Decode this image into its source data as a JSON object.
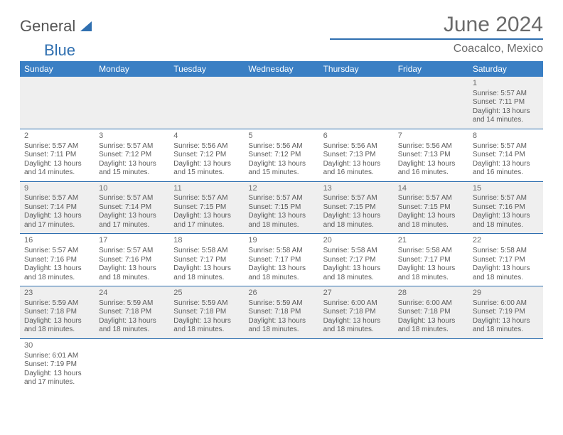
{
  "logo": {
    "word1": "General",
    "word2": "Blue",
    "mark_color": "#2f6fb0"
  },
  "header": {
    "title": "June 2024",
    "subtitle": "Coacalco, Mexico"
  },
  "colors": {
    "header_bg": "#3a7fc4",
    "header_fg": "#ffffff",
    "rule": "#2f6fb0",
    "shaded_row": "#efefef",
    "text": "#5a5a5a",
    "title_text": "#6a6a6a"
  },
  "fonts": {
    "body_pt": 10,
    "daynum_pt": 11,
    "header_pt": 12,
    "title_pt": 30,
    "subtitle_pt": 16
  },
  "day_labels": [
    "Sunday",
    "Monday",
    "Tuesday",
    "Wednesday",
    "Thursday",
    "Friday",
    "Saturday"
  ],
  "weeks": [
    {
      "shaded": true,
      "cells": [
        {
          "blank": true
        },
        {
          "blank": true
        },
        {
          "blank": true
        },
        {
          "blank": true
        },
        {
          "blank": true
        },
        {
          "blank": true
        },
        {
          "n": "1",
          "sr": "5:57 AM",
          "ss": "7:11 PM",
          "dl": "13 hours and 14 minutes."
        }
      ]
    },
    {
      "shaded": false,
      "cells": [
        {
          "n": "2",
          "sr": "5:57 AM",
          "ss": "7:11 PM",
          "dl": "13 hours and 14 minutes."
        },
        {
          "n": "3",
          "sr": "5:57 AM",
          "ss": "7:12 PM",
          "dl": "13 hours and 15 minutes."
        },
        {
          "n": "4",
          "sr": "5:56 AM",
          "ss": "7:12 PM",
          "dl": "13 hours and 15 minutes."
        },
        {
          "n": "5",
          "sr": "5:56 AM",
          "ss": "7:12 PM",
          "dl": "13 hours and 15 minutes."
        },
        {
          "n": "6",
          "sr": "5:56 AM",
          "ss": "7:13 PM",
          "dl": "13 hours and 16 minutes."
        },
        {
          "n": "7",
          "sr": "5:56 AM",
          "ss": "7:13 PM",
          "dl": "13 hours and 16 minutes."
        },
        {
          "n": "8",
          "sr": "5:57 AM",
          "ss": "7:14 PM",
          "dl": "13 hours and 16 minutes."
        }
      ]
    },
    {
      "shaded": true,
      "cells": [
        {
          "n": "9",
          "sr": "5:57 AM",
          "ss": "7:14 PM",
          "dl": "13 hours and 17 minutes."
        },
        {
          "n": "10",
          "sr": "5:57 AM",
          "ss": "7:14 PM",
          "dl": "13 hours and 17 minutes."
        },
        {
          "n": "11",
          "sr": "5:57 AM",
          "ss": "7:15 PM",
          "dl": "13 hours and 17 minutes."
        },
        {
          "n": "12",
          "sr": "5:57 AM",
          "ss": "7:15 PM",
          "dl": "13 hours and 18 minutes."
        },
        {
          "n": "13",
          "sr": "5:57 AM",
          "ss": "7:15 PM",
          "dl": "13 hours and 18 minutes."
        },
        {
          "n": "14",
          "sr": "5:57 AM",
          "ss": "7:15 PM",
          "dl": "13 hours and 18 minutes."
        },
        {
          "n": "15",
          "sr": "5:57 AM",
          "ss": "7:16 PM",
          "dl": "13 hours and 18 minutes."
        }
      ]
    },
    {
      "shaded": false,
      "cells": [
        {
          "n": "16",
          "sr": "5:57 AM",
          "ss": "7:16 PM",
          "dl": "13 hours and 18 minutes."
        },
        {
          "n": "17",
          "sr": "5:57 AM",
          "ss": "7:16 PM",
          "dl": "13 hours and 18 minutes."
        },
        {
          "n": "18",
          "sr": "5:58 AM",
          "ss": "7:17 PM",
          "dl": "13 hours and 18 minutes."
        },
        {
          "n": "19",
          "sr": "5:58 AM",
          "ss": "7:17 PM",
          "dl": "13 hours and 18 minutes."
        },
        {
          "n": "20",
          "sr": "5:58 AM",
          "ss": "7:17 PM",
          "dl": "13 hours and 18 minutes."
        },
        {
          "n": "21",
          "sr": "5:58 AM",
          "ss": "7:17 PM",
          "dl": "13 hours and 18 minutes."
        },
        {
          "n": "22",
          "sr": "5:58 AM",
          "ss": "7:17 PM",
          "dl": "13 hours and 18 minutes."
        }
      ]
    },
    {
      "shaded": true,
      "cells": [
        {
          "n": "23",
          "sr": "5:59 AM",
          "ss": "7:18 PM",
          "dl": "13 hours and 18 minutes."
        },
        {
          "n": "24",
          "sr": "5:59 AM",
          "ss": "7:18 PM",
          "dl": "13 hours and 18 minutes."
        },
        {
          "n": "25",
          "sr": "5:59 AM",
          "ss": "7:18 PM",
          "dl": "13 hours and 18 minutes."
        },
        {
          "n": "26",
          "sr": "5:59 AM",
          "ss": "7:18 PM",
          "dl": "13 hours and 18 minutes."
        },
        {
          "n": "27",
          "sr": "6:00 AM",
          "ss": "7:18 PM",
          "dl": "13 hours and 18 minutes."
        },
        {
          "n": "28",
          "sr": "6:00 AM",
          "ss": "7:18 PM",
          "dl": "13 hours and 18 minutes."
        },
        {
          "n": "29",
          "sr": "6:00 AM",
          "ss": "7:19 PM",
          "dl": "13 hours and 18 minutes."
        }
      ]
    },
    {
      "shaded": false,
      "cells": [
        {
          "n": "30",
          "sr": "6:01 AM",
          "ss": "7:19 PM",
          "dl": "13 hours and 17 minutes."
        },
        {
          "blank": true
        },
        {
          "blank": true
        },
        {
          "blank": true
        },
        {
          "blank": true
        },
        {
          "blank": true
        },
        {
          "blank": true
        }
      ]
    }
  ],
  "labels": {
    "sunrise": "Sunrise:",
    "sunset": "Sunset:",
    "daylight": "Daylight:"
  }
}
